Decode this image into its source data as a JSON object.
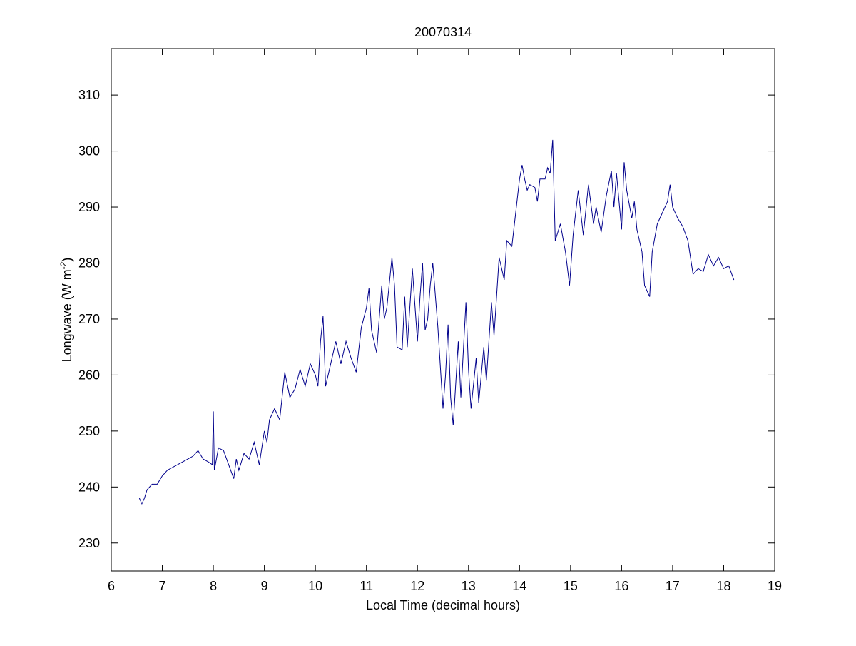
{
  "chart_data": {
    "type": "line",
    "title": "20070314",
    "xlabel": "Local Time (decimal hours)",
    "ylabel_parts": [
      "Longwave (W m",
      "-2",
      ")"
    ],
    "xlim": [
      6,
      19
    ],
    "xticks": [
      6,
      7,
      8,
      9,
      10,
      11,
      12,
      13,
      14,
      15,
      16,
      17,
      18,
      19
    ],
    "ylim": [
      225,
      318.3
    ],
    "yticks": [
      230,
      240,
      250,
      260,
      270,
      280,
      290,
      300,
      310
    ],
    "series": [
      {
        "color": "#00008b",
        "x": [
          6.55,
          6.6,
          6.65,
          6.7,
          6.8,
          6.9,
          7.0,
          7.1,
          7.2,
          7.3,
          7.4,
          7.5,
          7.6,
          7.7,
          7.8,
          7.9,
          7.98,
          8.0,
          8.02,
          8.1,
          8.2,
          8.3,
          8.4,
          8.45,
          8.5,
          8.6,
          8.7,
          8.8,
          8.9,
          9.0,
          9.05,
          9.1,
          9.2,
          9.3,
          9.4,
          9.5,
          9.6,
          9.7,
          9.8,
          9.9,
          10.0,
          10.05,
          10.1,
          10.15,
          10.2,
          10.3,
          10.4,
          10.5,
          10.6,
          10.7,
          10.8,
          10.9,
          11.0,
          11.05,
          11.1,
          11.2,
          11.3,
          11.35,
          11.4,
          11.5,
          11.55,
          11.6,
          11.7,
          11.75,
          11.8,
          11.9,
          12.0,
          12.05,
          12.1,
          12.15,
          12.2,
          12.25,
          12.3,
          12.4,
          12.5,
          12.55,
          12.6,
          12.65,
          12.7,
          12.8,
          12.85,
          12.95,
          13.0,
          13.05,
          13.15,
          13.2,
          13.3,
          13.35,
          13.45,
          13.5,
          13.6,
          13.7,
          13.75,
          13.85,
          13.9,
          14.0,
          14.05,
          14.1,
          14.15,
          14.2,
          14.3,
          14.35,
          14.4,
          14.5,
          14.55,
          14.6,
          14.65,
          14.7,
          14.8,
          14.9,
          14.98,
          15.05,
          15.15,
          15.25,
          15.35,
          15.45,
          15.5,
          15.6,
          15.7,
          15.8,
          15.85,
          15.9,
          16.0,
          16.05,
          16.1,
          16.2,
          16.25,
          16.3,
          16.4,
          16.45,
          16.5,
          16.55,
          16.6,
          16.7,
          16.8,
          16.9,
          16.95,
          17.0,
          17.1,
          17.2,
          17.3,
          17.4,
          17.5,
          17.6,
          17.7,
          17.8,
          17.9,
          18.0,
          18.1,
          18.2
        ],
        "values": [
          238,
          237,
          238,
          239.5,
          240.5,
          240.5,
          242,
          243,
          243.5,
          244,
          244.5,
          245,
          245.5,
          246.5,
          245,
          244.5,
          244,
          253.5,
          243,
          247,
          246.5,
          244,
          241.5,
          245,
          243,
          246,
          245,
          248,
          244,
          250,
          248,
          252,
          254,
          252,
          260.5,
          256,
          257.5,
          261,
          258,
          262,
          260,
          258,
          266,
          270.5,
          258,
          262,
          266,
          262,
          266,
          263,
          260.5,
          268.5,
          272,
          275.5,
          268,
          264,
          276,
          270,
          272,
          281,
          276,
          265,
          264.5,
          274,
          265,
          279,
          266,
          274,
          280,
          268,
          270,
          276,
          280,
          268.5,
          254,
          260,
          269,
          256,
          251,
          266,
          256,
          273,
          261,
          254,
          263,
          255,
          265,
          259,
          273,
          267,
          281,
          277,
          284,
          283,
          287,
          295,
          297.5,
          295,
          293,
          294,
          293.5,
          291,
          295,
          295,
          297,
          296,
          302,
          284,
          287,
          282,
          276,
          285,
          293,
          285,
          294,
          287,
          290,
          285.5,
          292,
          296.5,
          290,
          296,
          286,
          298,
          293,
          288,
          291,
          286,
          282,
          276,
          275,
          274,
          282,
          287,
          289,
          291,
          294,
          290,
          288,
          286.5,
          284,
          278,
          279,
          278.5,
          281.5,
          279.5,
          281,
          279,
          279.5,
          277
        ]
      }
    ]
  }
}
